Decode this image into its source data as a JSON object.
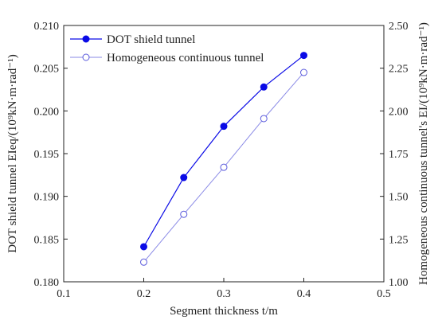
{
  "chart_data": {
    "type": "line",
    "x": [
      0.2,
      0.25,
      0.3,
      0.35,
      0.4
    ],
    "xlim": [
      0.1,
      0.5
    ],
    "xticks": [
      "0.1",
      "0.2",
      "0.3",
      "0.4",
      "0.5"
    ],
    "xlabel": "Segment thickness t/m",
    "ylabel_left": "DOT shield tunnel EIeq/(10⁹kN·m·rad⁻¹)",
    "ylabel_right": "Homogeneous continuous tunnel's EI/(10⁹kN·m·rad⁻¹)",
    "ylim_left": [
      0.18,
      0.21
    ],
    "ylim_right": [
      1.0,
      2.5
    ],
    "yticks_left": [
      "0.180",
      "0.185",
      "0.190",
      "0.195",
      "0.200",
      "0.205",
      "0.210"
    ],
    "yticks_right": [
      "1.00",
      "1.25",
      "1.50",
      "1.75",
      "2.00",
      "2.25",
      "2.50"
    ],
    "grid": false,
    "legend_position": "top-left",
    "series": [
      {
        "name": "DOT shield tunnel",
        "axis": "left",
        "values": [
          0.1841,
          0.1922,
          0.1982,
          0.2028,
          0.2065
        ],
        "color": "#0a0ae6",
        "marker": "filled-circle"
      },
      {
        "name": "Homogeneous continuous tunnel",
        "axis": "right",
        "values": [
          1.115,
          1.395,
          1.67,
          1.955,
          2.225
        ],
        "color": "#8a8ae6",
        "marker": "open-circle"
      }
    ]
  }
}
